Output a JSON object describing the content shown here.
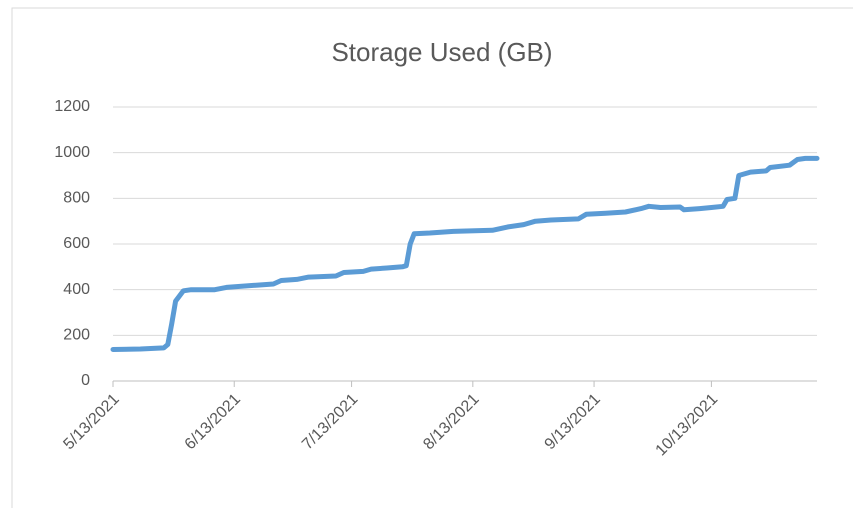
{
  "chart_data": {
    "type": "line",
    "title": "Storage Used (GB)",
    "x": [
      "5/13/2021",
      "5/20/2021",
      "5/26/2021",
      "5/27/2021",
      "5/28/2021",
      "5/29/2021",
      "5/31/2021",
      "6/2/2021",
      "6/8/2021",
      "6/11/2021",
      "6/19/2021",
      "6/23/2021",
      "6/25/2021",
      "6/29/2021",
      "7/2/2021",
      "7/9/2021",
      "7/11/2021",
      "7/16/2021",
      "7/18/2021",
      "7/22/2021",
      "7/26/2021",
      "7/27/2021",
      "7/28/2021",
      "7/29/2021",
      "8/2/2021",
      "8/8/2021",
      "8/18/2021",
      "8/22/2021",
      "8/26/2021",
      "8/29/2021",
      "9/2/2021",
      "9/9/2021",
      "9/11/2021",
      "9/16/2021",
      "9/21/2021",
      "9/25/2021",
      "9/27/2021",
      "9/30/2021",
      "10/5/2021",
      "10/6/2021",
      "10/10/2021",
      "10/13/2021",
      "10/16/2021",
      "10/17/2021",
      "10/19/2021",
      "10/20/2021",
      "10/23/2021",
      "10/27/2021",
      "10/28/2021",
      "11/2/2021",
      "11/4/2021",
      "11/6/2021",
      "11/9/2021"
    ],
    "series": [
      {
        "name": "Storage Used (GB)",
        "color": "#5b9bd5",
        "values": [
          138,
          140,
          145,
          160,
          250,
          350,
          395,
          400,
          400,
          410,
          420,
          425,
          440,
          445,
          455,
          460,
          475,
          480,
          490,
          495,
          500,
          505,
          600,
          645,
          648,
          655,
          660,
          675,
          685,
          700,
          705,
          710,
          730,
          735,
          740,
          755,
          765,
          760,
          762,
          750,
          755,
          760,
          765,
          795,
          800,
          900,
          915,
          920,
          935,
          945,
          970,
          975,
          975
        ]
      }
    ],
    "xlim": [
      "5/13/2021",
      "11/9/2021"
    ],
    "xticks": [
      "5/13/2021",
      "6/13/2021",
      "7/13/2021",
      "8/13/2021",
      "9/13/2021",
      "10/13/2021"
    ],
    "ylim": [
      0,
      1200
    ],
    "yticks": [
      0,
      200,
      400,
      600,
      800,
      1000,
      1200
    ],
    "grid": true
  }
}
